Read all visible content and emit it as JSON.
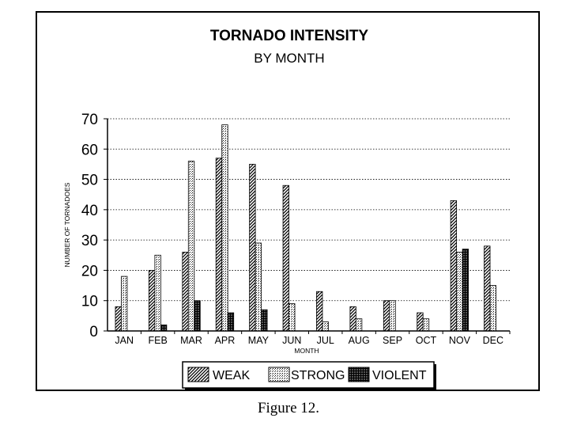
{
  "caption": "Figure 12.",
  "chart_data": {
    "type": "bar",
    "title": "TORNADO INTENSITY",
    "subtitle": "BY MONTH",
    "xlabel": "MONTH",
    "ylabel": "NUMBER OF TORNADOES",
    "ylim": [
      0,
      70
    ],
    "yticks": [
      0,
      10,
      20,
      30,
      40,
      50,
      60,
      70
    ],
    "grid": true,
    "legend_position": "bottom",
    "categories": [
      "JAN",
      "FEB",
      "MAR",
      "APR",
      "MAY",
      "JUN",
      "JUL",
      "AUG",
      "SEP",
      "OCT",
      "NOV",
      "DEC"
    ],
    "series": [
      {
        "name": "WEAK",
        "values": [
          8,
          20,
          26,
          57,
          55,
          48,
          13,
          8,
          10,
          6,
          43,
          28
        ]
      },
      {
        "name": "STRONG",
        "values": [
          18,
          25,
          56,
          68,
          29,
          9,
          3,
          4,
          10,
          4,
          26,
          15
        ]
      },
      {
        "name": "VIOLENT",
        "values": [
          0,
          2,
          10,
          6,
          7,
          0,
          0,
          0,
          0,
          0,
          27,
          0
        ]
      }
    ]
  }
}
